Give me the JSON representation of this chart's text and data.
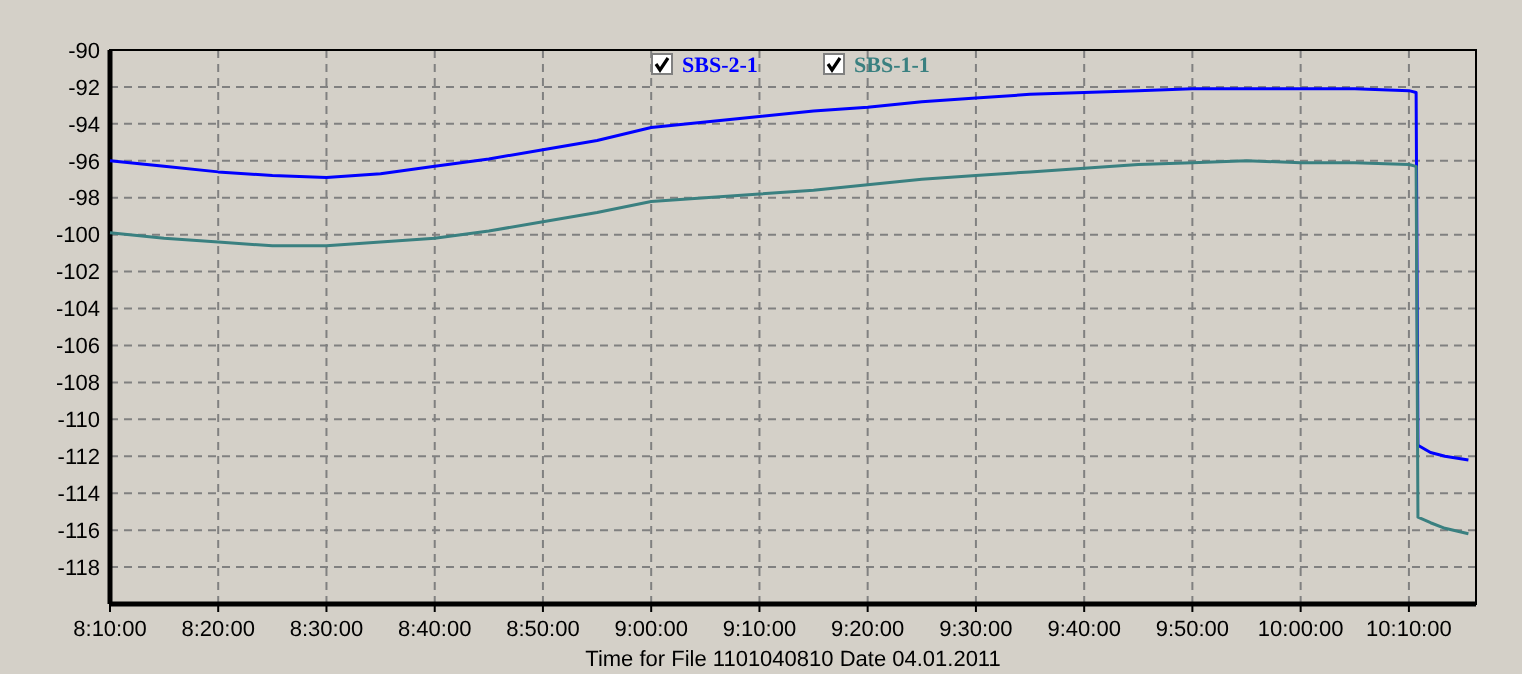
{
  "chart_data": {
    "type": "line",
    "xlabel": "Time  for File 1101040810 Date 04.01.2011",
    "x": [
      8.1667,
      8.25,
      8.3333,
      8.4167,
      8.5,
      8.5833,
      8.6667,
      8.75,
      8.8333,
      8.9167,
      9.0,
      9.0833,
      9.1667,
      9.25,
      9.3333,
      9.4167,
      9.5,
      9.5833,
      9.6667,
      9.75,
      9.8333,
      9.9167,
      10.0,
      10.0833,
      10.1667,
      10.1778,
      10.1806,
      10.2,
      10.2222,
      10.2583
    ],
    "series": [
      {
        "name": "SBS-2-1",
        "color": "#0000ff",
        "values": [
          -96.0,
          -96.3,
          -96.6,
          -96.8,
          -96.9,
          -96.7,
          -96.3,
          -95.9,
          -95.4,
          -94.9,
          -94.2,
          -93.9,
          -93.6,
          -93.3,
          -93.1,
          -92.8,
          -92.6,
          -92.4,
          -92.3,
          -92.2,
          -92.1,
          -92.1,
          -92.1,
          -92.1,
          -92.2,
          -92.3,
          -111.4,
          -111.8,
          -112.0,
          -112.2
        ]
      },
      {
        "name": "SBS-1-1",
        "color": "#3a8080",
        "values": [
          -99.9,
          -100.2,
          -100.4,
          -100.6,
          -100.6,
          -100.4,
          -100.2,
          -99.8,
          -99.3,
          -98.8,
          -98.2,
          -98.0,
          -97.8,
          -97.6,
          -97.3,
          -97.0,
          -96.8,
          -96.6,
          -96.4,
          -96.2,
          -96.1,
          -96.0,
          -96.1,
          -96.1,
          -96.2,
          -96.3,
          -115.3,
          -115.6,
          -115.9,
          -116.2
        ]
      }
    ],
    "xlim": [
      8.1667,
      10.27
    ],
    "xticks": [
      {
        "value": 8.1667,
        "label": "8:10:00"
      },
      {
        "value": 8.3333,
        "label": "8:20:00"
      },
      {
        "value": 8.5,
        "label": "8:30:00"
      },
      {
        "value": 8.6667,
        "label": "8:40:00"
      },
      {
        "value": 8.8333,
        "label": "8:50:00"
      },
      {
        "value": 9.0,
        "label": "9:00:00"
      },
      {
        "value": 9.1667,
        "label": "9:10:00"
      },
      {
        "value": 9.3333,
        "label": "9:20:00"
      },
      {
        "value": 9.5,
        "label": "9:30:00"
      },
      {
        "value": 9.6667,
        "label": "9:40:00"
      },
      {
        "value": 9.8333,
        "label": "9:50:00"
      },
      {
        "value": 10.0,
        "label": "10:00:00"
      },
      {
        "value": 10.1667,
        "label": "10:10:00"
      }
    ],
    "ylim": [
      -120,
      -90
    ],
    "yticks": [
      -118,
      -116,
      -114,
      -112,
      -110,
      -108,
      -106,
      -104,
      -102,
      -100,
      -98,
      -96,
      -94,
      -92,
      -90
    ],
    "grid": true,
    "legend": "top",
    "marker": "none",
    "line_style": "solid"
  }
}
